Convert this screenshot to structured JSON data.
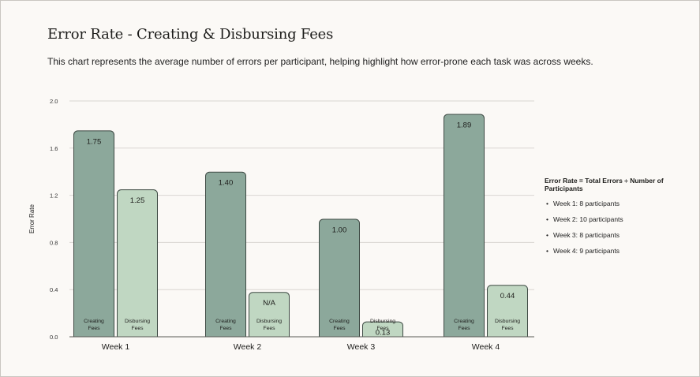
{
  "title": "Error Rate - Creating & Disbursing Fees",
  "subtitle": "This chart represents the average number of errors per participant, helping highlight how error-prone each task was across weeks.",
  "note": {
    "heading": "Error Rate = Total Errors ÷ Number of Participants",
    "items": [
      "Week 1: 8 participants",
      "Week 2: 10 participants",
      "Week 3: 8 participants",
      "Week 4: 9 participants"
    ]
  },
  "colors": {
    "creating": "#8ca89b",
    "disbursing": "#c0d7c2",
    "border": "#3e4a44",
    "grid": "#d9d6d1"
  },
  "chart_data": {
    "type": "bar",
    "title": "Error Rate - Creating & Disbursing Fees",
    "xlabel": "",
    "ylabel": "Error Rate",
    "ylim": [
      0,
      2.0
    ],
    "yticks": [
      "0.0",
      "0.4",
      "0.8",
      "1.2",
      "1.6",
      "2.0"
    ],
    "grid": true,
    "categories": [
      "Week 1",
      "Week 2",
      "Week 3",
      "Week 4"
    ],
    "series": [
      {
        "name": "Creating Fees",
        "bar_label": [
          "Creating",
          "Fees"
        ],
        "values": [
          1.75,
          1.4,
          1.0,
          1.89
        ],
        "value_labels": [
          "1.75",
          "1.40",
          "1.00",
          "1.89"
        ]
      },
      {
        "name": "Disbursing Fees",
        "bar_label": [
          "Disbursing",
          "Fees"
        ],
        "values": [
          1.25,
          null,
          0.13,
          0.44
        ],
        "value_labels": [
          "1.25",
          "N/A",
          "0.13",
          "0.44"
        ]
      }
    ]
  }
}
